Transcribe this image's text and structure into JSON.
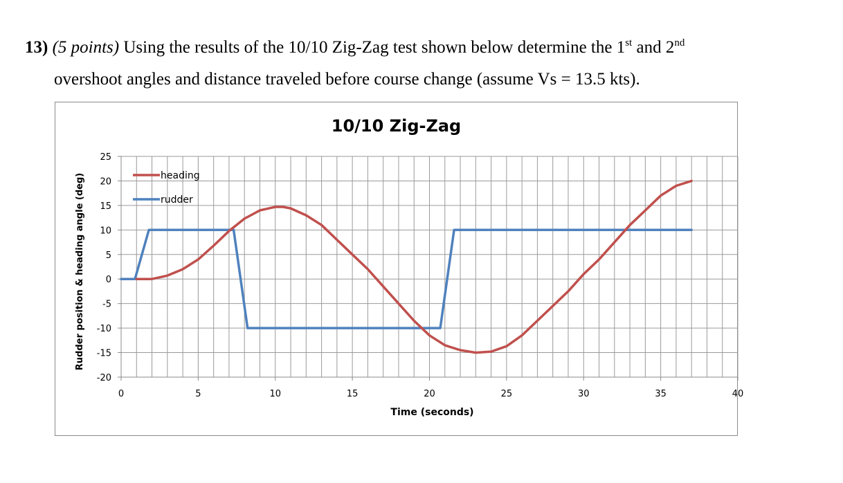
{
  "question": {
    "number": "13)",
    "points": "(5 points)",
    "text_before_sup1": "Using the results of the 10/10 Zig-Zag test shown below determine the 1",
    "sup1": "st",
    "text_between": " and 2",
    "sup2": "nd",
    "line2": "overshoot angles and distance traveled before course change (assume Vs = 13.5 kts)."
  },
  "chart_data": {
    "type": "line",
    "title": "10/10 Zig-Zag",
    "xlabel": "Time (seconds)",
    "ylabel": "Rudder position & heading angle (deg)",
    "xlim": [
      0,
      40
    ],
    "ylim": [
      -20,
      25
    ],
    "x_ticks": [
      0,
      5,
      10,
      15,
      20,
      25,
      30,
      35,
      40
    ],
    "y_ticks": [
      25,
      20,
      15,
      10,
      5,
      0,
      -5,
      -10,
      -15,
      -20
    ],
    "grid": true,
    "legend_position": "top-left",
    "series": [
      {
        "name": "heading",
        "color": "#c0504d",
        "x": [
          1,
          2,
          3,
          4,
          5,
          6,
          7,
          8,
          9,
          10,
          10.5,
          11,
          12,
          13,
          14,
          15,
          16,
          17,
          18,
          19,
          20,
          21,
          22,
          23,
          24,
          25,
          26,
          27,
          28,
          29,
          30,
          31,
          32,
          33,
          34,
          35,
          36,
          37
        ],
        "values": [
          0,
          0,
          0.7,
          2,
          4,
          6.8,
          9.8,
          12.3,
          14,
          14.7,
          14.7,
          14.4,
          13,
          11,
          8,
          5,
          2,
          -1.5,
          -5,
          -8.5,
          -11.5,
          -13.5,
          -14.5,
          -15,
          -14.8,
          -13.7,
          -11.5,
          -8.5,
          -5.5,
          -2.5,
          1,
          4,
          7.5,
          11,
          14,
          17,
          19,
          20
        ]
      },
      {
        "name": "rudder",
        "color": "#4f81bd",
        "x": [
          0,
          0.9,
          1.8,
          7.3,
          8.2,
          20.7,
          21.6,
          37
        ],
        "values": [
          0,
          0,
          10,
          10,
          -10,
          -10,
          10,
          10
        ]
      }
    ]
  }
}
